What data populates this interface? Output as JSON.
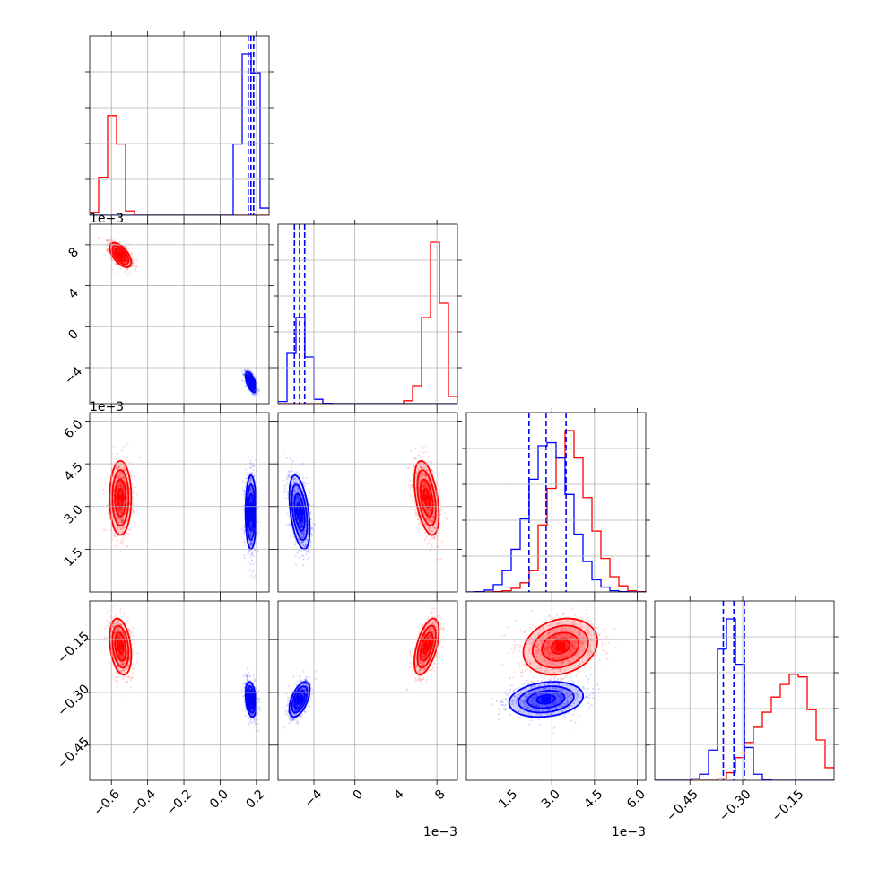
{
  "chart_data": {
    "type": "corner",
    "colors": {
      "red": "#ff0000",
      "blue": "#0000ff"
    },
    "parameters": [
      {
        "range": [
          -0.72,
          0.27
        ],
        "ticks": [
          -0.6,
          -0.4,
          -0.2,
          0.0,
          0.2
        ],
        "tick_labels": [
          "−0.6",
          "−0.4",
          "−0.2",
          "0.0",
          "0.2"
        ],
        "offset": ""
      },
      {
        "range": [
          -7.5,
          10.0
        ],
        "ticks": [
          -4,
          0,
          4,
          8
        ],
        "tick_labels": [
          "−4",
          "0",
          "4",
          "8"
        ],
        "offset": "1e−3"
      },
      {
        "range": [
          0.0,
          6.3
        ],
        "ticks": [
          1.5,
          3.0,
          4.5,
          6.0
        ],
        "tick_labels": [
          "1.5",
          "3.0",
          "4.5",
          "6.0"
        ],
        "offset": "1e−3"
      },
      {
        "range": [
          -0.55,
          -0.04
        ],
        "ticks": [
          -0.45,
          -0.3,
          -0.15
        ],
        "tick_labels": [
          "−0.45",
          "−0.30",
          "−0.15"
        ],
        "offset": ""
      }
    ],
    "series": [
      {
        "color": "red",
        "means": [
          -0.55,
          7.0,
          3.3,
          -0.17
        ],
        "sds": [
          0.03,
          0.6,
          0.65,
          0.04
        ],
        "quantiles": []
      },
      {
        "color": "blue",
        "means": [
          0.17,
          -5.4,
          2.8,
          -0.32
        ],
        "sds": [
          0.015,
          0.5,
          0.65,
          0.025
        ],
        "quantiles": [
          [
            0.155,
            0.17,
            0.185
          ],
          [
            -5.9,
            -5.4,
            -4.9
          ],
          [
            2.2,
            2.8,
            3.5
          ],
          [
            -0.355,
            -0.325,
            -0.295
          ]
        ]
      }
    ],
    "histograms": [
      {
        "edges": [
          -0.72,
          -0.6705,
          -0.621,
          -0.5715,
          -0.522,
          -0.4725,
          -0.423,
          -0.3735,
          -0.324,
          -0.2745,
          -0.225,
          -0.1755,
          -0.126,
          -0.0765,
          -0.027,
          0.0225,
          0.072,
          0.1215,
          0.171,
          0.2205,
          0.27
        ],
        "red": [
          60,
          800,
          2100,
          1500,
          90,
          0,
          0,
          0,
          0,
          0,
          0,
          0,
          0,
          0,
          0,
          0,
          0,
          0,
          0,
          0
        ],
        "blue": [
          0,
          0,
          0,
          0,
          0,
          0,
          0,
          0,
          0,
          0,
          0,
          0,
          0,
          0,
          0,
          0,
          1500,
          3400,
          3000,
          150
        ]
      },
      {
        "edges": [
          -7.5,
          -6.625,
          -5.75,
          -4.875,
          -4.0,
          -3.125,
          -2.25,
          -1.375,
          -0.5,
          0.375,
          1.25,
          2.125,
          3.0,
          3.875,
          4.75,
          5.625,
          6.5,
          7.375,
          8.25,
          9.125,
          10.0
        ],
        "red": [
          0,
          0,
          0,
          0,
          0,
          0,
          0,
          0,
          0,
          0,
          0,
          0,
          0,
          0,
          80,
          500,
          2400,
          4500,
          2800,
          200
        ],
        "blue": [
          60,
          1400,
          2400,
          1300,
          120,
          10,
          0,
          0,
          0,
          0,
          0,
          0,
          0,
          0,
          0,
          0,
          0,
          0,
          0,
          0
        ]
      },
      {
        "edges": [
          0.0,
          0.315,
          0.63,
          0.945,
          1.26,
          1.575,
          1.89,
          2.205,
          2.52,
          2.835,
          3.15,
          3.465,
          3.78,
          4.095,
          4.41,
          4.725,
          5.04,
          5.355,
          5.67,
          5.985,
          6.3
        ],
        "red": [
          0,
          0,
          0,
          5,
          20,
          60,
          150,
          350,
          1100,
          1700,
          2200,
          2650,
          2200,
          1550,
          1000,
          550,
          250,
          100,
          20,
          5
        ],
        "blue": [
          0,
          5,
          30,
          120,
          350,
          700,
          1200,
          1850,
          2400,
          2450,
          2200,
          1600,
          950,
          500,
          200,
          80,
          20,
          5,
          0,
          0
        ]
      },
      {
        "edges": [
          -0.55,
          -0.5245,
          -0.499,
          -0.4735,
          -0.448,
          -0.4225,
          -0.397,
          -0.3715,
          -0.346,
          -0.3205,
          -0.295,
          -0.2695,
          -0.244,
          -0.2185,
          -0.193,
          -0.1675,
          -0.142,
          -0.1165,
          -0.091,
          -0.0655,
          -0.04
        ],
        "red": [
          0,
          0,
          0,
          0,
          0,
          0,
          0,
          30,
          150,
          450,
          750,
          1050,
          1350,
          1650,
          1900,
          2100,
          2050,
          1400,
          800,
          250
        ],
        "blue": [
          0,
          0,
          0,
          0,
          30,
          120,
          600,
          2600,
          3200,
          2300,
          650,
          120,
          15,
          0,
          0,
          0,
          0,
          0,
          0,
          0
        ]
      }
    ]
  }
}
